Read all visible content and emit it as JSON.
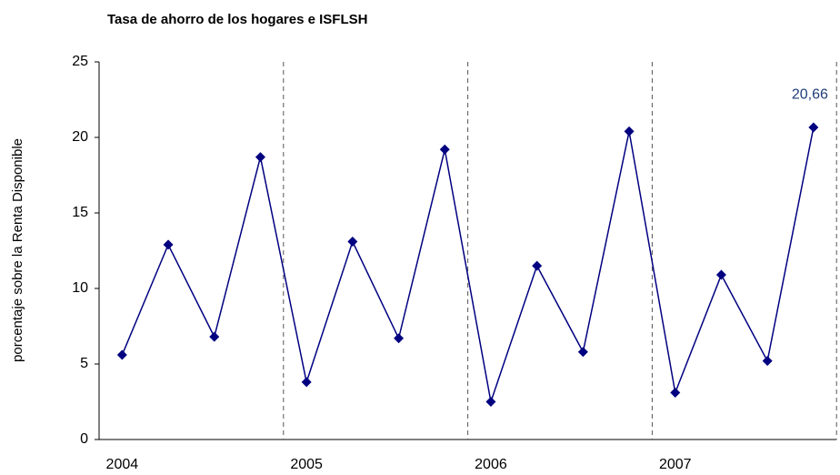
{
  "chart_data": {
    "type": "line",
    "title": "Tasa de ahorro de los hogares e ISFLSH",
    "y_label": "porcentaje sobre la Renta Disponible",
    "categories": [
      "2004",
      null,
      null,
      null,
      "2005",
      null,
      null,
      null,
      "2006",
      null,
      null,
      null,
      "2007",
      null,
      null,
      null
    ],
    "series": [
      {
        "color": "#000080",
        "values": [
          5.6,
          12.9,
          6.8,
          18.7,
          3.8,
          13.1,
          6.7,
          19.2,
          2.5,
          11.5,
          5.8,
          20.4,
          3.1,
          10.9,
          5.2,
          20.66
        ],
        "value_labels": [
          null,
          null,
          null,
          null,
          null,
          null,
          null,
          null,
          null,
          null,
          null,
          null,
          null,
          null,
          null,
          "20,66"
        ]
      }
    ],
    "ylim": [
      0,
      25
    ],
    "yticks": [
      0,
      5,
      10,
      15,
      20,
      25
    ]
  }
}
